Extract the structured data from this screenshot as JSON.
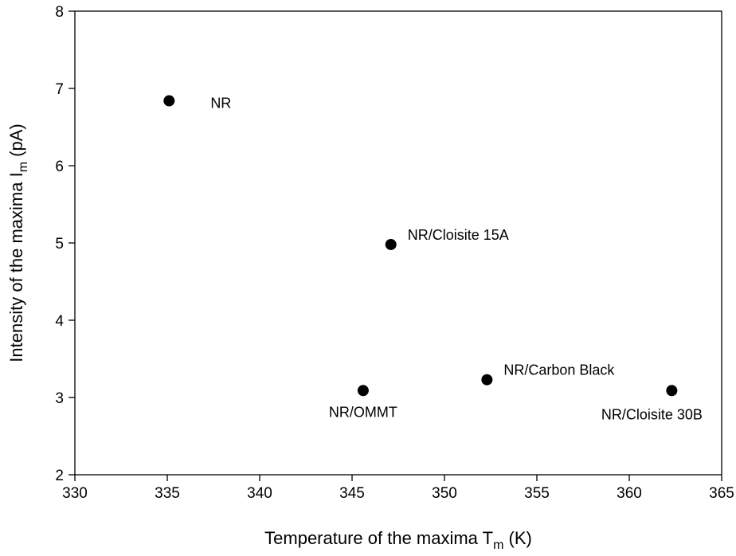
{
  "chart_data": {
    "type": "scatter",
    "title": "",
    "xlabel": {
      "main": "Temperature of the maxima T",
      "sub": "m",
      "tail": " (K)"
    },
    "ylabel": {
      "main": "Intensity of the maxima I",
      "sub": "m",
      "tail": " (pA)"
    },
    "xlim": [
      330,
      365
    ],
    "ylim": [
      2,
      8
    ],
    "xticks": [
      "330",
      "335",
      "340",
      "345",
      "350",
      "355",
      "360",
      "365"
    ],
    "yticks": [
      "2",
      "3",
      "4",
      "5",
      "6",
      "7",
      "8"
    ],
    "grid": false,
    "marker_color": "#000000",
    "points": [
      {
        "label": "NR",
        "x": 335.1,
        "y": 6.84,
        "label_pos": "right"
      },
      {
        "label": "NR/Cloisite 15A",
        "x": 347.1,
        "y": 4.98,
        "label_pos": "upper-right"
      },
      {
        "label": "NR/OMMT",
        "x": 345.6,
        "y": 3.09,
        "label_pos": "below"
      },
      {
        "label": "NR/Carbon Black",
        "x": 352.3,
        "y": 3.23,
        "label_pos": "upper-right"
      },
      {
        "label": "NR/Cloisite 30B",
        "x": 362.3,
        "y": 3.09,
        "label_pos": "below-left"
      }
    ]
  }
}
